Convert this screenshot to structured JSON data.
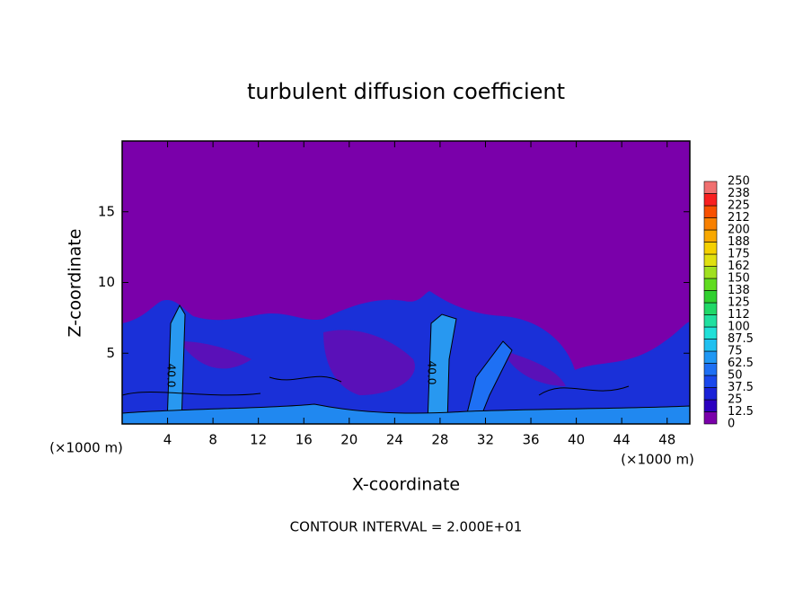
{
  "chart_data": {
    "type": "contour",
    "title": "turbulent diffusion coefficient",
    "x_label": "X-coordinate",
    "y_label": "Z-coordinate",
    "x_unit": "(×1000 m)",
    "x_unit_right": "(×1000 m)",
    "note": "CONTOUR INTERVAL = 2.000E+01",
    "contour_labels": [
      "40.0",
      "40.0"
    ],
    "xlim": [
      0,
      50
    ],
    "xticks": [
      4,
      8,
      12,
      16,
      20,
      24,
      28,
      32,
      36,
      40,
      44,
      48
    ],
    "ylim": [
      0,
      20
    ],
    "yticks": [
      5,
      10,
      15
    ],
    "colorbar": {
      "levels": [
        0,
        12.5,
        25,
        37.5,
        50,
        62.5,
        75,
        87.5,
        100,
        112,
        125,
        138,
        150,
        162,
        175,
        188,
        200,
        212,
        225,
        238,
        250
      ],
      "colors": [
        "#7a00aa",
        "#2c00c0",
        "#1a22d8",
        "#1a48ec",
        "#1e70f4",
        "#2098f4",
        "#20c0f0",
        "#20e0d8",
        "#20e0a0",
        "#20d868",
        "#30d030",
        "#60dc20",
        "#a0e020",
        "#e0e010",
        "#f4d000",
        "#f8a800",
        "#f88000",
        "#f85000",
        "#f82020",
        "#f07070"
      ]
    }
  }
}
